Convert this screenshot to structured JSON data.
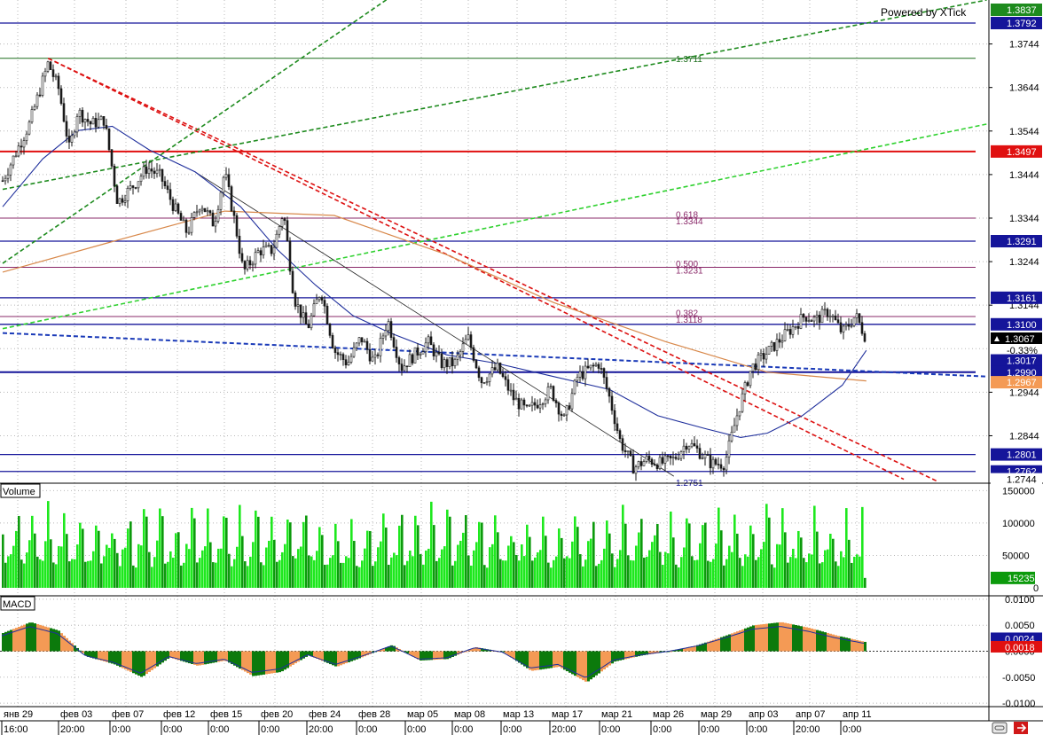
{
  "watermark": "Powered by XTick",
  "colors": {
    "background": "#ffffff",
    "grid": "#b8b8b8",
    "separator": "#000000",
    "candle": "#1a1a1a",
    "ma_fast": "#1f2f9c",
    "ma_slow": "#d8884a",
    "trend_red": "#dd1111",
    "channel_green": "#1e8b1e",
    "channel_light": "#2fd12f",
    "level_blue": "#15159a",
    "level_red": "#e01010",
    "fib": "#8a2a6a",
    "volume_bright": "#1ee81e",
    "volume_dark": "#0c9a0c",
    "macd_pos": "#0c7a0c",
    "macd_neg": "#f49a55",
    "macd_signal": "#1f2f9c"
  },
  "price_panel": {
    "axis_ticks": [
      "1.3744",
      "1.3644",
      "1.3544",
      "1.3444",
      "1.3344",
      "1.3244",
      "1.3144",
      "1.2944",
      "1.2844"
    ],
    "tags": [
      {
        "label": "1.3837",
        "bg": "#1e8b1e",
        "fg": "#ffffff"
      },
      {
        "label": "1.3792",
        "bg": "#15159a",
        "fg": "#ffffff"
      },
      {
        "label": "1.3497",
        "bg": "#e01010",
        "fg": "#ffffff"
      },
      {
        "label": "1.3291",
        "bg": "#15159a",
        "fg": "#ffffff"
      },
      {
        "label": "1.3161",
        "bg": "#15159a",
        "fg": "#ffffff"
      },
      {
        "label": "1.3100",
        "bg": "#15159a",
        "fg": "#ffffff"
      },
      {
        "label": "1.3067",
        "bg": "#000000",
        "fg": "#ffffff"
      },
      {
        "label": "-0.33%",
        "bg": "#ffffff",
        "fg": "#000000"
      },
      {
        "label": "1.3017",
        "bg": "#15159a",
        "fg": "#ffffff"
      },
      {
        "label": "1.2990",
        "bg": "#15159a",
        "fg": "#ffffff"
      },
      {
        "label": "1.2967",
        "bg": "#f49a55",
        "fg": "#ffffff"
      },
      {
        "label": "1.2801",
        "bg": "#15159a",
        "fg": "#ffffff"
      },
      {
        "label": "1.2762",
        "bg": "#15159a",
        "fg": "#ffffff"
      },
      {
        "label": "1.2744",
        "bg": "#ffffff",
        "fg": "#000000"
      }
    ],
    "level_labels": [
      {
        "text": "1.3711",
        "price": 1.3711,
        "color": "#1e6e1e"
      },
      {
        "text": "0.618",
        "price": 1.3353,
        "color": "#8a2a6a"
      },
      {
        "text": "1.3344",
        "price": 1.3338,
        "color": "#8a2a6a"
      },
      {
        "text": "0.500",
        "price": 1.324,
        "color": "#8a2a6a"
      },
      {
        "text": "1.3231",
        "price": 1.3225,
        "color": "#8a2a6a"
      },
      {
        "text": "0.382",
        "price": 1.3127,
        "color": "#8a2a6a"
      },
      {
        "text": "1.3118",
        "price": 1.3112,
        "color": "#8a2a6a"
      },
      {
        "text": "1.2751",
        "price": 1.2737,
        "color": "#15159a"
      }
    ]
  },
  "volume_panel": {
    "title": "Volume",
    "axis_ticks": [
      "150000",
      "100000",
      "50000",
      "0"
    ],
    "last_tag": "15235"
  },
  "macd_panel": {
    "title": "MACD",
    "axis_ticks": [
      "0.0100",
      "0.0050",
      "0.0000",
      "-0.0050",
      "-0.0100"
    ],
    "tags": [
      {
        "label": "0.0024",
        "bg": "#15159a",
        "fg": "#ffffff"
      },
      {
        "label": "0.0018",
        "bg": "#e01010",
        "fg": "#ffffff"
      }
    ]
  },
  "x_axis": {
    "dates": [
      "янв 29",
      "фев 03",
      "фев 07",
      "фев 12",
      "фев 15",
      "фев 20",
      "фев 24",
      "фев 28",
      "мар 05",
      "мар 08",
      "мар 13",
      "мар 17",
      "мар 21",
      "мар 26",
      "мар 29",
      "апр 03",
      "апр 07",
      "апр 11"
    ],
    "times": [
      "16:00",
      "20:00",
      "0:00",
      "0:00",
      "0:00",
      "0:00",
      "20:00",
      "0:00",
      "0:00",
      "0:00",
      "0:00",
      "20:00",
      "0:00",
      "0:00",
      "0:00",
      "0:00",
      "20:00",
      "0:00"
    ]
  },
  "chart_data": {
    "type": "line",
    "instrument_timeframe": "",
    "price_range": [
      1.2735,
      1.3845
    ],
    "volume_range": [
      0,
      160000
    ],
    "macd_range": [
      -0.0105,
      0.0105
    ],
    "close_path": [
      [
        0,
        1.343
      ],
      [
        1.0,
        1.356
      ],
      [
        1.7,
        1.37
      ],
      [
        2.1,
        1.364
      ],
      [
        2.5,
        1.35
      ],
      [
        2.8,
        1.359
      ],
      [
        3.3,
        1.356
      ],
      [
        3.8,
        1.357
      ],
      [
        4.3,
        1.338
      ],
      [
        4.9,
        1.342
      ],
      [
        5.4,
        1.346
      ],
      [
        5.9,
        1.344
      ],
      [
        6.4,
        1.337
      ],
      [
        6.9,
        1.331
      ],
      [
        7.4,
        1.338
      ],
      [
        7.9,
        1.333
      ],
      [
        8.3,
        1.345
      ],
      [
        8.7,
        1.333
      ],
      [
        9.0,
        1.322
      ],
      [
        9.6,
        1.327
      ],
      [
        10.1,
        1.327
      ],
      [
        10.5,
        1.336
      ],
      [
        10.9,
        1.316
      ],
      [
        11.4,
        1.309
      ],
      [
        11.9,
        1.318
      ],
      [
        12.4,
        1.304
      ],
      [
        12.9,
        1.301
      ],
      [
        13.4,
        1.307
      ],
      [
        13.9,
        1.301
      ],
      [
        14.4,
        1.311
      ],
      [
        14.9,
        1.3
      ],
      [
        15.4,
        1.303
      ],
      [
        15.9,
        1.306
      ],
      [
        16.4,
        1.301
      ],
      [
        16.9,
        1.301
      ],
      [
        17.4,
        1.307
      ],
      [
        17.9,
        1.297
      ],
      [
        18.5,
        1.3
      ],
      [
        19.1,
        1.293
      ],
      [
        19.6,
        1.29
      ],
      [
        20.0,
        1.292
      ],
      [
        20.5,
        1.295
      ],
      [
        21.0,
        1.288
      ],
      [
        21.5,
        1.298
      ],
      [
        22.3,
        1.301
      ],
      [
        22.7,
        1.293
      ],
      [
        23.1,
        1.283
      ],
      [
        23.6,
        1.277
      ],
      [
        24.1,
        1.279
      ],
      [
        24.6,
        1.278
      ],
      [
        25.1,
        1.279
      ],
      [
        25.6,
        1.283
      ],
      [
        26.0,
        1.281
      ],
      [
        26.5,
        1.278
      ],
      [
        27.0,
        1.278
      ],
      [
        27.5,
        1.29
      ],
      [
        28.0,
        1.3
      ],
      [
        28.5,
        1.303
      ],
      [
        29.0,
        1.306
      ],
      [
        29.5,
        1.309
      ],
      [
        30.0,
        1.312
      ],
      [
        30.4,
        1.311
      ],
      [
        30.9,
        1.313
      ],
      [
        31.4,
        1.308
      ],
      [
        31.9,
        1.312
      ],
      [
        32.3,
        1.3067
      ]
    ],
    "lines": [
      {
        "name": "1.3792",
        "price": 1.3792,
        "color": "#15159a",
        "width": 1.3
      },
      {
        "name": "1.3711",
        "price": 1.3711,
        "color": "#1e6e1e",
        "width": 1
      },
      {
        "name": "1.3497",
        "price": 1.3497,
        "color": "#e01010",
        "width": 2
      },
      {
        "name": "0.618",
        "price": 1.3344,
        "color": "#8a2a6a",
        "width": 1
      },
      {
        "name": "1.3291",
        "price": 1.3291,
        "color": "#15159a",
        "width": 1.3
      },
      {
        "name": "0.500",
        "price": 1.3231,
        "color": "#8a2a6a",
        "width": 1
      },
      {
        "name": "1.3161",
        "price": 1.3161,
        "color": "#15159a",
        "width": 1.3
      },
      {
        "name": "0.382",
        "price": 1.3118,
        "color": "#8a2a6a",
        "width": 1
      },
      {
        "name": "1.3100",
        "price": 1.31,
        "color": "#15159a",
        "width": 1.3
      },
      {
        "name": "1.2990",
        "price": 1.299,
        "color": "#15159a",
        "width": 2
      },
      {
        "name": "1.2801",
        "price": 1.2801,
        "color": "#15159a",
        "width": 1.3
      },
      {
        "name": "1.2762",
        "price": 1.2762,
        "color": "#15159a",
        "width": 1.3
      }
    ],
    "trendlines": [
      {
        "kind": "red-dashed",
        "from": [
          1.7,
          1.3711
        ],
        "to": [
          33.7,
          1.2744
        ]
      },
      {
        "kind": "red-dashed",
        "from": [
          1.7,
          1.3711
        ],
        "to": [
          35.0,
          1.2738
        ]
      },
      {
        "kind": "green-dashed",
        "from": [
          0,
          1.324
        ],
        "to": [
          19.2,
          1.405
        ]
      },
      {
        "kind": "green-dashed",
        "from": [
          0,
          1.341
        ],
        "to": [
          36.8,
          1.3845
        ]
      },
      {
        "kind": "lightgreen-dashed",
        "from": [
          0,
          1.309
        ],
        "to": [
          36.8,
          1.356
        ]
      },
      {
        "kind": "blue-dashed",
        "from": [
          0,
          1.308
        ],
        "to": [
          36.8,
          1.298
        ]
      },
      {
        "kind": "thin-channel",
        "from": [
          7.2,
          1.345
        ],
        "to": [
          25.1,
          1.2751
        ]
      }
    ],
    "ma_fast": [
      [
        0,
        1.337
      ],
      [
        1.5,
        1.348
      ],
      [
        2.8,
        1.3545
      ],
      [
        4.1,
        1.3555
      ],
      [
        5.5,
        1.35
      ],
      [
        7.2,
        1.345
      ],
      [
        8.9,
        1.337
      ],
      [
        10.3,
        1.327
      ],
      [
        11.7,
        1.319
      ],
      [
        13.1,
        1.312
      ],
      [
        14.5,
        1.308
      ],
      [
        16.6,
        1.303
      ],
      [
        18.5,
        1.301
      ],
      [
        20.6,
        1.298
      ],
      [
        22.7,
        1.295
      ],
      [
        24.5,
        1.289
      ],
      [
        26.3,
        1.286
      ],
      [
        27.6,
        1.284
      ],
      [
        28.6,
        1.285
      ],
      [
        29.9,
        1.289
      ],
      [
        31.4,
        1.296
      ],
      [
        32.3,
        1.304
      ]
    ],
    "ma_slow": [
      [
        0,
        1.322
      ],
      [
        4.1,
        1.329
      ],
      [
        8.3,
        1.336
      ],
      [
        12.4,
        1.335
      ],
      [
        16.6,
        1.326
      ],
      [
        20.6,
        1.315
      ],
      [
        24.8,
        1.306
      ],
      [
        28.6,
        1.299
      ],
      [
        32.3,
        1.297
      ]
    ],
    "volume": {
      "wave": [
        90000,
        45000,
        40000,
        55000,
        60000,
        100000
      ],
      "last": 15235
    },
    "macd": {
      "hist": [
        0.0035,
        0.0056,
        0.004,
        -0.001,
        -0.0025,
        -0.005,
        -0.0012,
        -0.0028,
        -0.0018,
        -0.0048,
        -0.004,
        -0.0008,
        -0.003,
        -0.001,
        0.0012,
        -0.0018,
        -0.0015,
        0.0008,
        -0.0002,
        -0.0038,
        -0.003,
        -0.006,
        -0.002,
        -0.0008,
        0.0,
        0.0012,
        0.003,
        0.005,
        0.0056,
        0.0045,
        0.003,
        0.0018
      ],
      "signal_last": 0.0024
    }
  }
}
